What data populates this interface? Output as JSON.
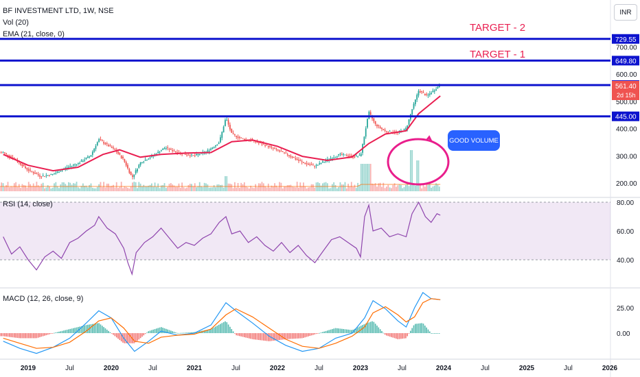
{
  "header": {
    "symbol_line": "BF INVESTMENT LTD, 1W, NSE",
    "vol_line": "Vol (20)",
    "ema_line": "EMA (21, close, 0)",
    "rsi_line": "RSI (14, close)",
    "macd_line": "MACD (12, 26, close, 9)"
  },
  "currency_button": "INR",
  "annotations": {
    "target2": "TARGET - 2",
    "target1": "TARGET - 1",
    "callout": "GOOD VOLUME"
  },
  "colors": {
    "level_line": "#0d13ce",
    "ema": "#e91e50",
    "candle_up": "#26a69a",
    "candle_down": "#ef5350",
    "rsi": "#8e44ad",
    "macd": "#2196f3",
    "signal": "#ff6d00",
    "highlight": "#e91e8c",
    "badge_blue": "#0d13ce",
    "badge_red": "#ef5350"
  },
  "chart_data": [
    {
      "type": "candlestick",
      "title": "BF INVESTMENT LTD, 1W, NSE",
      "x_ticks": [
        "2019",
        "Jul",
        "2020",
        "Jul",
        "2021",
        "Jul",
        "2022",
        "Jul",
        "2023",
        "Jul",
        "2024",
        "Jul",
        "2025",
        "Jul",
        "2026"
      ],
      "y_ticks": [
        "200.00",
        "300.00",
        "400.00",
        "500.00",
        "600.00",
        "700.00"
      ],
      "ylim": [
        190,
        760
      ],
      "levels": [
        {
          "value": 729.55,
          "label": "729.55"
        },
        {
          "value": 649.8,
          "label": "649.80"
        },
        {
          "value": 560.0,
          "label": "560.00"
        },
        {
          "value": 445.0,
          "label": "445.00"
        }
      ],
      "last_price": {
        "value": 561.4,
        "label": "561.40",
        "countdown": "2d 15h"
      },
      "price_series": [
        {
          "t": 2018.7,
          "v": 312
        },
        {
          "t": 2018.85,
          "v": 285
        },
        {
          "t": 2019.0,
          "v": 248
        },
        {
          "t": 2019.15,
          "v": 225
        },
        {
          "t": 2019.3,
          "v": 232
        },
        {
          "t": 2019.45,
          "v": 255
        },
        {
          "t": 2019.6,
          "v": 272
        },
        {
          "t": 2019.75,
          "v": 300
        },
        {
          "t": 2019.85,
          "v": 360
        },
        {
          "t": 2019.95,
          "v": 340
        },
        {
          "t": 2020.05,
          "v": 320
        },
        {
          "t": 2020.15,
          "v": 285
        },
        {
          "t": 2020.25,
          "v": 220
        },
        {
          "t": 2020.35,
          "v": 275
        },
        {
          "t": 2020.5,
          "v": 300
        },
        {
          "t": 2020.65,
          "v": 330
        },
        {
          "t": 2020.8,
          "v": 312
        },
        {
          "t": 2020.9,
          "v": 305
        },
        {
          "t": 2021.0,
          "v": 300
        },
        {
          "t": 2021.15,
          "v": 315
        },
        {
          "t": 2021.3,
          "v": 350
        },
        {
          "t": 2021.38,
          "v": 440
        },
        {
          "t": 2021.45,
          "v": 380
        },
        {
          "t": 2021.55,
          "v": 365
        },
        {
          "t": 2021.7,
          "v": 355
        },
        {
          "t": 2021.85,
          "v": 340
        },
        {
          "t": 2022.0,
          "v": 320
        },
        {
          "t": 2022.15,
          "v": 300
        },
        {
          "t": 2022.3,
          "v": 275
        },
        {
          "t": 2022.45,
          "v": 262
        },
        {
          "t": 2022.6,
          "v": 285
        },
        {
          "t": 2022.75,
          "v": 305
        },
        {
          "t": 2022.9,
          "v": 298
        },
        {
          "t": 2023.0,
          "v": 300
        },
        {
          "t": 2023.05,
          "v": 380
        },
        {
          "t": 2023.1,
          "v": 460
        },
        {
          "t": 2023.18,
          "v": 415
        },
        {
          "t": 2023.3,
          "v": 390
        },
        {
          "t": 2023.45,
          "v": 385
        },
        {
          "t": 2023.55,
          "v": 400
        },
        {
          "t": 2023.62,
          "v": 470
        },
        {
          "t": 2023.7,
          "v": 540
        },
        {
          "t": 2023.8,
          "v": 520
        },
        {
          "t": 2023.9,
          "v": 545
        },
        {
          "t": 2023.96,
          "v": 561.4
        }
      ],
      "ema_series": [
        {
          "t": 2018.7,
          "v": 305
        },
        {
          "t": 2019.0,
          "v": 265
        },
        {
          "t": 2019.3,
          "v": 245
        },
        {
          "t": 2019.6,
          "v": 258
        },
        {
          "t": 2019.9,
          "v": 305
        },
        {
          "t": 2020.1,
          "v": 322
        },
        {
          "t": 2020.35,
          "v": 295
        },
        {
          "t": 2020.6,
          "v": 305
        },
        {
          "t": 2020.9,
          "v": 310
        },
        {
          "t": 2021.2,
          "v": 312
        },
        {
          "t": 2021.45,
          "v": 352
        },
        {
          "t": 2021.7,
          "v": 358
        },
        {
          "t": 2022.0,
          "v": 335
        },
        {
          "t": 2022.3,
          "v": 298
        },
        {
          "t": 2022.6,
          "v": 283
        },
        {
          "t": 2022.9,
          "v": 296
        },
        {
          "t": 2023.1,
          "v": 345
        },
        {
          "t": 2023.3,
          "v": 380
        },
        {
          "t": 2023.55,
          "v": 392
        },
        {
          "t": 2023.7,
          "v": 455
        },
        {
          "t": 2023.96,
          "v": 520
        }
      ]
    },
    {
      "type": "line",
      "title": "RSI (14, close)",
      "y_ticks": [
        "40.00",
        "60.00",
        "80.00"
      ],
      "ylim": [
        25,
        85
      ],
      "band": [
        40,
        80
      ],
      "series": [
        {
          "t": 2018.7,
          "v": 56
        },
        {
          "t": 2018.8,
          "v": 44
        },
        {
          "t": 2018.9,
          "v": 49
        },
        {
          "t": 2019.0,
          "v": 40
        },
        {
          "t": 2019.1,
          "v": 33
        },
        {
          "t": 2019.2,
          "v": 42
        },
        {
          "t": 2019.3,
          "v": 46
        },
        {
          "t": 2019.4,
          "v": 41
        },
        {
          "t": 2019.5,
          "v": 52
        },
        {
          "t": 2019.6,
          "v": 55
        },
        {
          "t": 2019.7,
          "v": 60
        },
        {
          "t": 2019.8,
          "v": 64
        },
        {
          "t": 2019.85,
          "v": 70
        },
        {
          "t": 2019.95,
          "v": 62
        },
        {
          "t": 2020.05,
          "v": 58
        },
        {
          "t": 2020.15,
          "v": 48
        },
        {
          "t": 2020.2,
          "v": 38
        },
        {
          "t": 2020.25,
          "v": 30
        },
        {
          "t": 2020.3,
          "v": 45
        },
        {
          "t": 2020.4,
          "v": 52
        },
        {
          "t": 2020.5,
          "v": 56
        },
        {
          "t": 2020.6,
          "v": 62
        },
        {
          "t": 2020.7,
          "v": 55
        },
        {
          "t": 2020.8,
          "v": 48
        },
        {
          "t": 2020.9,
          "v": 52
        },
        {
          "t": 2021.0,
          "v": 50
        },
        {
          "t": 2021.1,
          "v": 55
        },
        {
          "t": 2021.2,
          "v": 58
        },
        {
          "t": 2021.3,
          "v": 66
        },
        {
          "t": 2021.38,
          "v": 70
        },
        {
          "t": 2021.45,
          "v": 58
        },
        {
          "t": 2021.55,
          "v": 60
        },
        {
          "t": 2021.65,
          "v": 52
        },
        {
          "t": 2021.75,
          "v": 56
        },
        {
          "t": 2021.85,
          "v": 50
        },
        {
          "t": 2021.95,
          "v": 46
        },
        {
          "t": 2022.05,
          "v": 52
        },
        {
          "t": 2022.15,
          "v": 45
        },
        {
          "t": 2022.25,
          "v": 50
        },
        {
          "t": 2022.35,
          "v": 43
        },
        {
          "t": 2022.45,
          "v": 38
        },
        {
          "t": 2022.55,
          "v": 46
        },
        {
          "t": 2022.65,
          "v": 54
        },
        {
          "t": 2022.75,
          "v": 56
        },
        {
          "t": 2022.85,
          "v": 52
        },
        {
          "t": 2022.95,
          "v": 48
        },
        {
          "t": 2023.0,
          "v": 42
        },
        {
          "t": 2023.05,
          "v": 70
        },
        {
          "t": 2023.1,
          "v": 78
        },
        {
          "t": 2023.15,
          "v": 60
        },
        {
          "t": 2023.25,
          "v": 62
        },
        {
          "t": 2023.35,
          "v": 56
        },
        {
          "t": 2023.45,
          "v": 58
        },
        {
          "t": 2023.55,
          "v": 56
        },
        {
          "t": 2023.62,
          "v": 72
        },
        {
          "t": 2023.7,
          "v": 80
        },
        {
          "t": 2023.78,
          "v": 70
        },
        {
          "t": 2023.85,
          "v": 66
        },
        {
          "t": 2023.92,
          "v": 72
        },
        {
          "t": 2023.96,
          "v": 71
        }
      ]
    },
    {
      "type": "line",
      "title": "MACD (12, 26, close, 9)",
      "y_ticks": [
        "0.00",
        "25.00"
      ],
      "ylim": [
        -30,
        50
      ],
      "macd_series": [
        {
          "t": 2018.7,
          "v": -8
        },
        {
          "t": 2018.9,
          "v": -15
        },
        {
          "t": 2019.1,
          "v": -20
        },
        {
          "t": 2019.3,
          "v": -14
        },
        {
          "t": 2019.5,
          "v": -5
        },
        {
          "t": 2019.7,
          "v": 10
        },
        {
          "t": 2019.85,
          "v": 22
        },
        {
          "t": 2020.0,
          "v": 15
        },
        {
          "t": 2020.15,
          "v": -5
        },
        {
          "t": 2020.28,
          "v": -18
        },
        {
          "t": 2020.45,
          "v": -8
        },
        {
          "t": 2020.6,
          "v": 2
        },
        {
          "t": 2020.8,
          "v": -2
        },
        {
          "t": 2021.0,
          "v": 0
        },
        {
          "t": 2021.2,
          "v": 8
        },
        {
          "t": 2021.38,
          "v": 30
        },
        {
          "t": 2021.5,
          "v": 22
        },
        {
          "t": 2021.7,
          "v": 10
        },
        {
          "t": 2021.9,
          "v": -3
        },
        {
          "t": 2022.1,
          "v": -12
        },
        {
          "t": 2022.3,
          "v": -18
        },
        {
          "t": 2022.5,
          "v": -15
        },
        {
          "t": 2022.7,
          "v": -5
        },
        {
          "t": 2022.9,
          "v": 0
        },
        {
          "t": 2023.05,
          "v": 15
        },
        {
          "t": 2023.15,
          "v": 32
        },
        {
          "t": 2023.3,
          "v": 24
        },
        {
          "t": 2023.45,
          "v": 12
        },
        {
          "t": 2023.55,
          "v": 6
        },
        {
          "t": 2023.65,
          "v": 25
        },
        {
          "t": 2023.75,
          "v": 40
        },
        {
          "t": 2023.85,
          "v": 34
        },
        {
          "t": 2023.96,
          "v": 33
        }
      ],
      "signal_series": [
        {
          "t": 2018.7,
          "v": -5
        },
        {
          "t": 2018.9,
          "v": -10
        },
        {
          "t": 2019.1,
          "v": -15
        },
        {
          "t": 2019.3,
          "v": -14
        },
        {
          "t": 2019.5,
          "v": -9
        },
        {
          "t": 2019.7,
          "v": 2
        },
        {
          "t": 2019.85,
          "v": 12
        },
        {
          "t": 2020.0,
          "v": 15
        },
        {
          "t": 2020.15,
          "v": 5
        },
        {
          "t": 2020.28,
          "v": -8
        },
        {
          "t": 2020.45,
          "v": -10
        },
        {
          "t": 2020.6,
          "v": -4
        },
        {
          "t": 2020.8,
          "v": -2
        },
        {
          "t": 2021.0,
          "v": -1
        },
        {
          "t": 2021.2,
          "v": 4
        },
        {
          "t": 2021.38,
          "v": 18
        },
        {
          "t": 2021.5,
          "v": 24
        },
        {
          "t": 2021.7,
          "v": 16
        },
        {
          "t": 2021.9,
          "v": 5
        },
        {
          "t": 2022.1,
          "v": -6
        },
        {
          "t": 2022.3,
          "v": -13
        },
        {
          "t": 2022.5,
          "v": -15
        },
        {
          "t": 2022.7,
          "v": -10
        },
        {
          "t": 2022.9,
          "v": -3
        },
        {
          "t": 2023.05,
          "v": 6
        },
        {
          "t": 2023.15,
          "v": 20
        },
        {
          "t": 2023.3,
          "v": 26
        },
        {
          "t": 2023.45,
          "v": 18
        },
        {
          "t": 2023.55,
          "v": 11
        },
        {
          "t": 2023.65,
          "v": 16
        },
        {
          "t": 2023.75,
          "v": 30
        },
        {
          "t": 2023.85,
          "v": 34
        },
        {
          "t": 2023.96,
          "v": 33
        }
      ]
    }
  ]
}
